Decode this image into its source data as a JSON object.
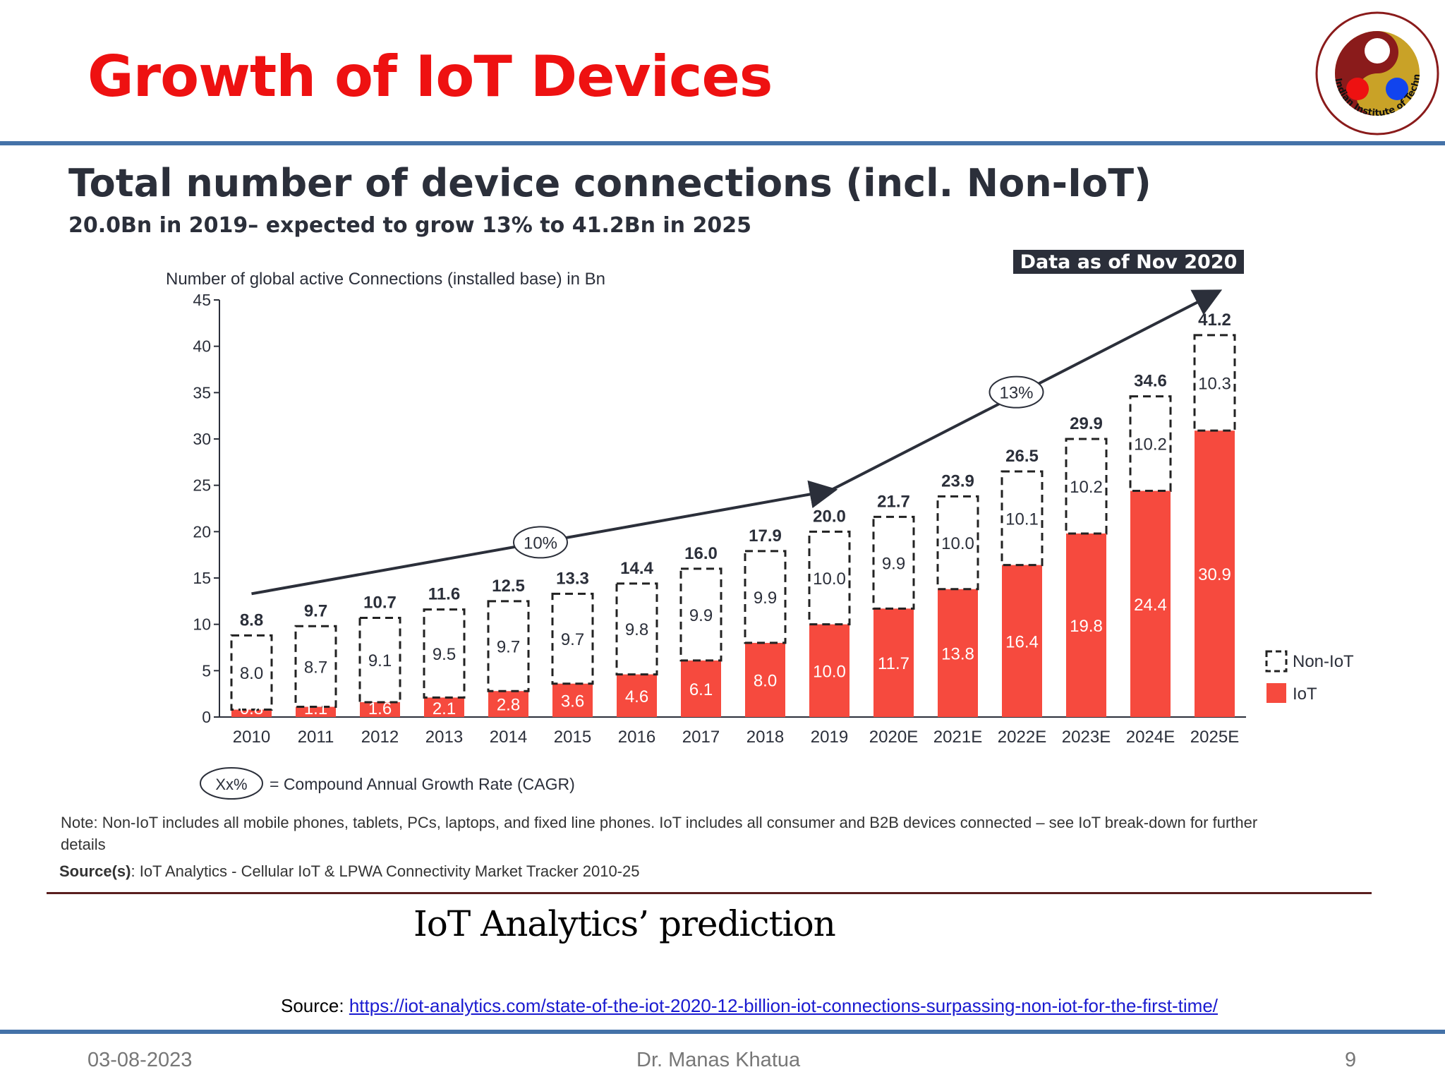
{
  "slide": {
    "title": "Growth of IoT Devices",
    "caption": "IoT Analytics’ prediction",
    "source_label": "Source:",
    "source_link": "https://iot-analytics.com/state-of-the-iot-2020-12-billion-iot-connections-surpassing-non-iot-for-the-first-time/",
    "footer_date": "03-08-2023",
    "footer_author": "Dr. Manas Khatua",
    "page_number": "9",
    "colors": {
      "title": "#ee1111",
      "rule": "#4472a8",
      "link": "#1a1ad0"
    }
  },
  "logo": {
    "icon": "institute-seal-icon",
    "text": "Indian Institute of Technology Guwahati"
  },
  "chart_data": {
    "type": "bar",
    "stacked": true,
    "title": "Total number of device connections (incl. Non-IoT)",
    "subtitle": "20.0Bn in 2019– expected to grow 13% to 41.2Bn in 2025",
    "badge": "Data as of Nov 2020",
    "ylabel": "Number of global active Connections (installed base) in Bn",
    "ylim": [
      0,
      45
    ],
    "yticks": [
      0,
      5,
      10,
      15,
      20,
      25,
      30,
      35,
      40,
      45
    ],
    "grid": false,
    "legend_position": "right",
    "categories": [
      "2010",
      "2011",
      "2012",
      "2013",
      "2014",
      "2015",
      "2016",
      "2017",
      "2018",
      "2019",
      "2020E",
      "2021E",
      "2022E",
      "2023E",
      "2024E",
      "2025E"
    ],
    "series": [
      {
        "name": "IoT",
        "color": "#f64a3e",
        "style": "solid",
        "values": [
          0.8,
          1.1,
          1.6,
          2.1,
          2.8,
          3.6,
          4.6,
          6.1,
          8.0,
          10.0,
          11.7,
          13.8,
          16.4,
          19.8,
          24.4,
          30.9
        ]
      },
      {
        "name": "Non-IoT",
        "color": "#222222",
        "style": "dashed",
        "values": [
          8.0,
          8.7,
          9.1,
          9.5,
          9.7,
          9.7,
          9.8,
          9.9,
          9.9,
          10.0,
          9.9,
          10.0,
          10.1,
          10.2,
          10.2,
          10.3
        ]
      }
    ],
    "totals": [
      "8.8",
      "9.7",
      "10.7",
      "11.6",
      "12.5",
      "13.3",
      "14.4",
      "16.0",
      "17.9",
      "20.0",
      "21.7",
      "23.9",
      "26.5",
      "29.9",
      "34.6",
      "41.2"
    ],
    "iot_labels": [
      "0.8",
      "1.1",
      "1.6",
      "2.1",
      "2.8",
      "3.6",
      "4.6",
      "6.1",
      "8.0",
      "10.0",
      "11.7",
      "13.8",
      "16.4",
      "19.8",
      "24.4",
      "30.9"
    ],
    "noniot_labels": [
      "8.0",
      "8.7",
      "9.1",
      "9.5",
      "9.7",
      "9.7",
      "9.8",
      "9.9",
      "9.9",
      "10.0",
      "9.9",
      "10.0",
      "10.1",
      "10.2",
      "10.2",
      "10.3"
    ],
    "cagr": [
      {
        "label": "10%",
        "from": "2010",
        "to": "2019"
      },
      {
        "label": "13%",
        "from": "2019",
        "to": "2025E"
      }
    ],
    "cagr_legend": {
      "symbol": "Xx%",
      "text": "= Compound Annual Growth Rate (CAGR)"
    },
    "note": "Note: Non-IoT includes all mobile phones, tablets, PCs, laptops, and fixed line phones. IoT includes all consumer and B2B devices connected – see IoT break-down for further details",
    "sources_label": "Source(s)",
    "sources_text": ": IoT Analytics - Cellular IoT & LPWA Connectivity Market Tracker 2010-25"
  }
}
